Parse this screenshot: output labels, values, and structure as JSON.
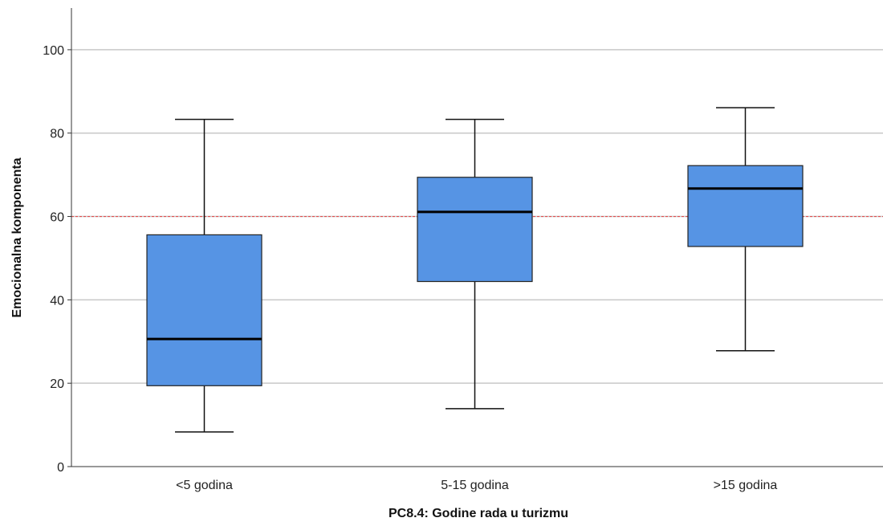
{
  "chart_data": {
    "type": "boxplot",
    "xlabel": "PC8.4: Godine rada u turizmu",
    "ylabel": "Emocionalna komponenta",
    "ylim": [
      0,
      110
    ],
    "y_ticks": [
      0,
      20,
      40,
      60,
      80,
      100
    ],
    "grid": true,
    "reference_line": {
      "y": 60,
      "color": "#e05050",
      "style": "dashed"
    },
    "box_color": "#5694e4",
    "categories": [
      "<5 godina",
      "5-15 godina",
      ">15 godina"
    ],
    "boxes": [
      {
        "label": "<5 godina",
        "min": 8.3,
        "q1": 19.4,
        "median": 30.6,
        "q3": 55.6,
        "max": 83.3
      },
      {
        "label": "5-15 godina",
        "min": 13.9,
        "q1": 44.4,
        "median": 61.1,
        "q3": 69.4,
        "max": 83.3
      },
      {
        "label": ">15 godina",
        "min": 27.8,
        "q1": 52.8,
        "median": 66.7,
        "q3": 72.2,
        "max": 86.1
      }
    ]
  }
}
